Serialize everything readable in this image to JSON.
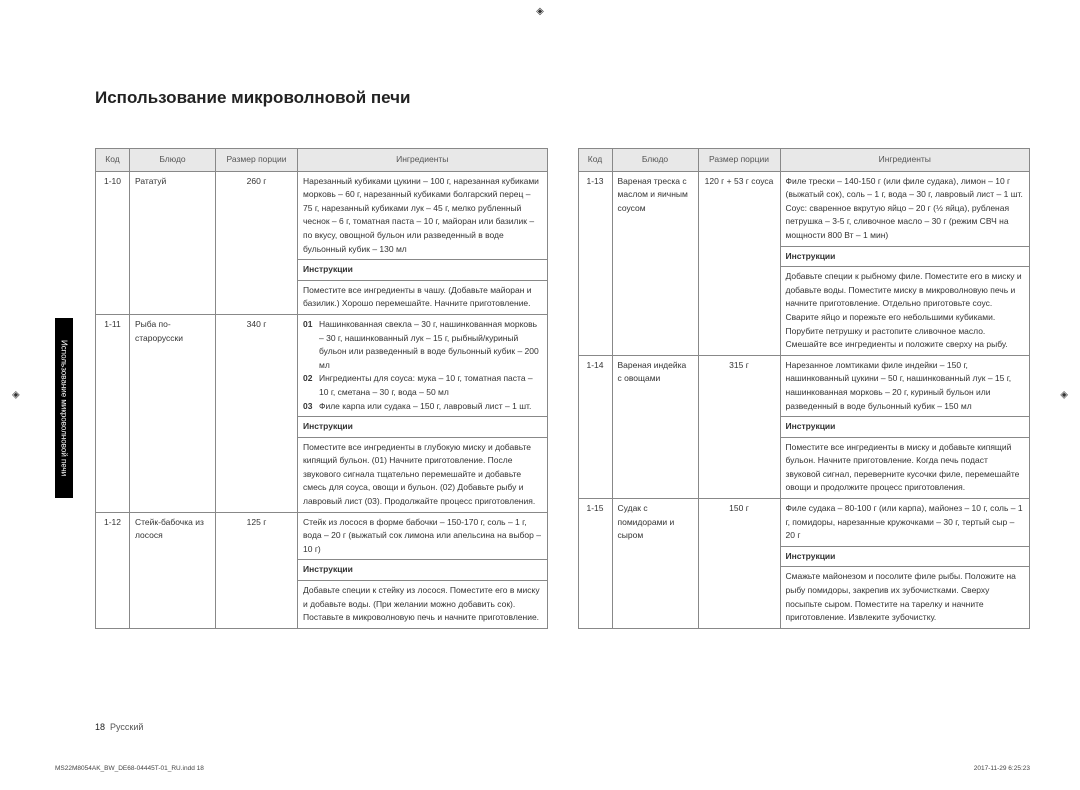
{
  "title": "Использование микроволновой печи",
  "sideTab": "Использование микроволновой печи",
  "headers": {
    "code": "Код",
    "dish": "Блюдо",
    "size": "Размер порции",
    "ingredients": "Ингредиенты",
    "instructions": "Инструкции"
  },
  "left": [
    {
      "code": "1-10",
      "dish": "Рататуй",
      "size": "260 г",
      "ingredients": "Нарезанный кубиками цукини – 100 г, нарезанная кубиками морковь – 60 г, нарезанный кубиками болгарский перец – 75 г, нарезанный кубиками лук – 45 г, мелко рубленный чеснок – 6 г, томатная паста – 10 г, майоран или базилик – по вкусу, овощной бульон или разведенный в воде бульонный кубик – 130 мл",
      "instr": "Поместите все ингредиенты в чашу. (Добавьте майоран и базилик.) Хорошо перемешайте. Начните приготовление."
    },
    {
      "code": "1-11",
      "dish": "Рыба по-старорусски",
      "size": "340 г",
      "steps": [
        {
          "n": "01",
          "t": "Нашинкованная свекла – 30 г, нашинкованная морковь – 30 г, нашинкованный лук – 15 г, рыбный/куриный бульон или разведенный в воде бульонный кубик – 200 мл"
        },
        {
          "n": "02",
          "t": "Ингредиенты для соуса: мука – 10 г, томатная паста – 10 г, сметана – 30 г, вода – 50 мл"
        },
        {
          "n": "03",
          "t": "Филе карпа или судака – 150 г, лавровый лист – 1 шт."
        }
      ],
      "instr": "Поместите все ингредиенты в глубокую миску и добавьте кипящий бульон. (01) Начните приготовление. После звукового сигнала тщательно перемешайте и добавьте смесь для соуса, овощи и бульон. (02) Добавьте рыбу и лавровый лист (03). Продолжайте процесс приготовления."
    },
    {
      "code": "1-12",
      "dish": "Стейк-бабочка из лосося",
      "size": "125 г",
      "ingredients": "Стейк из лосося в форме бабочки – 150-170 г, соль – 1 г, вода – 20 г (выжатый сок лимона или апельсина на выбор – 10 г)",
      "instr": "Добавьте специи к стейку из лосося. Поместите его в миску и добавьте воды. (При желании можно добавить сок). Поставьте в микроволновую печь и начните приготовление."
    }
  ],
  "right": [
    {
      "code": "1-13",
      "dish": "Вареная треска с маслом и яичным соусом",
      "size": "120 г + 53 г соуса",
      "ingredients": "Филе трески – 140-150 г (или филе судака), лимон – 10 г (выжатый сок), соль – 1 г, вода – 30 г, лавровый лист – 1 шт. Соус: сваренное вкрутую яйцо – 20 г (½ яйца), рубленая петрушка – 3-5 г, сливочное масло – 30 г (режим СВЧ на мощности 800 Вт – 1 мин)",
      "instr": "Добавьте специи к рыбному филе. Поместите его в миску и добавьте воды. Поместите миску в микроволновую печь и начните приготовление. Отдельно приготовьте соус. Сварите яйцо и порежьте его небольшими кубиками. Порубите петрушку и растопите сливочное масло. Смешайте все ингредиенты и положите сверху на рыбу."
    },
    {
      "code": "1-14",
      "dish": "Вареная индейка с овощами",
      "size": "315 г",
      "ingredients": "Нарезанное ломтиками филе индейки – 150 г, нашинкованный цукини – 50 г, нашинкованный лук – 15 г, нашинкованная морковь – 20 г, куриный бульон или разведенный в воде бульонный кубик – 150 мл",
      "instr": "Поместите все ингредиенты в миску и добавьте кипящий бульон. Начните приготовление. Когда печь подаст звуковой сигнал, переверните кусочки филе, перемешайте овощи и продолжите процесс приготовления."
    },
    {
      "code": "1-15",
      "dish": "Судак с помидорами и сыром",
      "size": "150 г",
      "ingredients": "Филе судака – 80-100 г (или карпа), майонез – 10 г, соль – 1 г, помидоры, нарезанные кружочками – 30 г, тертый сыр – 20 г",
      "instr": "Смажьте майонезом и посолите филе рыбы. Положите на рыбу помидоры, закрепив их зубочистками. Сверху посыпьте сыром. Поместите на тарелку и начните приготовление. Извлеките зубочистку."
    }
  ],
  "footer": {
    "page": "18",
    "lang": "Русский"
  },
  "imprint": {
    "left": "MS22M8054AK_BW_DE68-04445T-01_RU.indd   18",
    "right": "2017-11-29   6:25:23"
  }
}
